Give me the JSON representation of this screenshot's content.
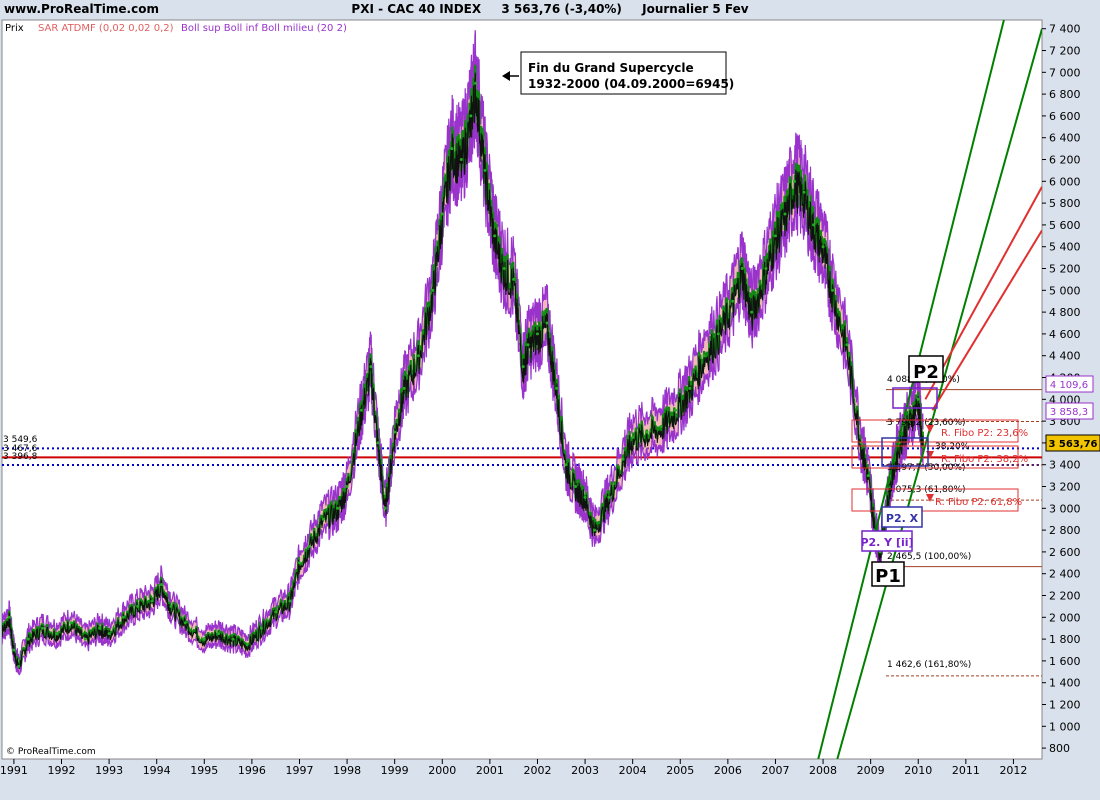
{
  "header": {
    "site": "www.ProRealTime.com",
    "instrument": "PXI - CAC 40 INDEX",
    "last": "3 563,76 (-3,40%)",
    "period": "Journalier  5 Fev"
  },
  "legend": {
    "prix": "Prix",
    "sar": "SAR ATDMF (0,02 0,02 0,2)",
    "boll": "Boll sup Boll inf Boll milieu (20 2)"
  },
  "copyright": "© ProRealTime.com",
  "annotation": {
    "line1": "Fin du Grand Supercycle",
    "line2": "1932-2000 (04.09.2000=6945)"
  },
  "price_tags": {
    "tag1": "4 109,6",
    "tag2": "3 858,3",
    "tag3": "3 563,76"
  },
  "left_levels": {
    "l1": "3 549,6",
    "l2": "3 467,6",
    "l3": "3 396,8"
  },
  "fib_labels": {
    "f0": "4 088,5 (0,00%)",
    "f23": "3 796,2 (23,60%)",
    "f38": "38,20%",
    "f50": "3 397,7 (50,00%)",
    "f61": "3 075,3 (61,80%)",
    "f100": "2 465,5 (100,00%)",
    "f161": "1 462,6 (161,80%)",
    "r1": "R. Fibo P2: 23,6%",
    "r2": "R. Fibo P2: 38,2%",
    "r3": "R. Fibo P2: 61,8%"
  },
  "waves": {
    "p1": "P1",
    "p2": "P2",
    "p2y": "P2. Y [ii]",
    "p2x": "P2. X"
  },
  "chart_data": {
    "type": "line",
    "title": "PXI - CAC 40 INDEX",
    "frequency": "daily",
    "series": [
      {
        "name": "Prix",
        "x": [
          1990.7,
          1990.9,
          1991.0,
          1991.1,
          1991.3,
          1991.6,
          1991.9,
          1992.2,
          1992.5,
          1992.8,
          1993.0,
          1993.3,
          1993.6,
          1993.9,
          1994.1,
          1994.3,
          1994.6,
          1995.0,
          1995.3,
          1995.6,
          1995.9,
          1996.2,
          1996.5,
          1996.8,
          1997.0,
          1997.2,
          1997.5,
          1997.8,
          1998.0,
          1998.3,
          1998.5,
          1998.65,
          1998.8,
          1999.0,
          1999.2,
          1999.5,
          1999.8,
          2000.0,
          2000.2,
          2000.4,
          2000.6,
          2000.7,
          2000.9,
          2001.1,
          2001.3,
          2001.5,
          2001.7,
          2001.8,
          2002.0,
          2002.2,
          2002.4,
          2002.6,
          2002.8,
          2003.0,
          2003.2,
          2003.5,
          2003.8,
          2004.0,
          2004.3,
          2004.6,
          2004.9,
          2005.2,
          2005.5,
          2005.8,
          2006.1,
          2006.3,
          2006.5,
          2006.8,
          2007.0,
          2007.2,
          2007.4,
          2007.6,
          2007.8,
          2008.0,
          2008.2,
          2008.5,
          2008.8,
          2008.95,
          2009.1,
          2009.2,
          2009.4,
          2009.6,
          2009.8,
          2010.0,
          2010.1
        ],
        "y": [
          1850,
          2000,
          1700,
          1550,
          1800,
          1900,
          1850,
          1950,
          1800,
          1900,
          1850,
          2000,
          2100,
          2150,
          2300,
          2100,
          1950,
          1800,
          1850,
          1800,
          1750,
          1900,
          2050,
          2150,
          2500,
          2650,
          2900,
          3000,
          3200,
          3900,
          4300,
          3600,
          3000,
          3700,
          4100,
          4400,
          5000,
          5700,
          6300,
          6200,
          6600,
          6900,
          6100,
          5500,
          5200,
          5100,
          4300,
          4500,
          4600,
          4700,
          4100,
          3400,
          3200,
          3100,
          2800,
          3100,
          3450,
          3650,
          3700,
          3750,
          3900,
          4100,
          4400,
          4600,
          4900,
          5200,
          4800,
          5200,
          5500,
          5700,
          6000,
          5900,
          5600,
          5400,
          5000,
          4500,
          3600,
          3300,
          2800,
          2600,
          3200,
          3600,
          3800,
          4000,
          3563.76
        ]
      }
    ],
    "xlabel": "",
    "ylabel": "",
    "xlim": [
      1990.75,
      2012.6
    ],
    "ylim": [
      700,
      7480
    ],
    "x_ticks": [
      "1991",
      "1992",
      "1993",
      "1994",
      "1995",
      "1996",
      "1997",
      "1998",
      "1999",
      "2000",
      "2001",
      "2002",
      "2003",
      "2004",
      "2005",
      "2006",
      "2007",
      "2008",
      "2009",
      "2010",
      "2011",
      "2012"
    ],
    "y_ticks": [
      800,
      1000,
      1200,
      1400,
      1600,
      1800,
      2000,
      2200,
      2400,
      2600,
      2800,
      3000,
      3200,
      3400,
      3600,
      3800,
      4000,
      4200,
      4400,
      4600,
      4800,
      5000,
      5200,
      5400,
      5600,
      5800,
      6000,
      6200,
      6400,
      6600,
      6800,
      7000,
      7200,
      7400
    ],
    "last_value": 3563.76,
    "change_pct": -3.4,
    "fibonacci_levels": [
      {
        "pct": 0,
        "value": 4088.5
      },
      {
        "pct": 23.6,
        "value": 3796.2
      },
      {
        "pct": 50.0,
        "value": 3397.7
      },
      {
        "pct": 61.8,
        "value": 3075.3
      },
      {
        "pct": 100.0,
        "value": 2465.5
      },
      {
        "pct": 161.8,
        "value": 1462.6
      }
    ],
    "horizontal_levels": [
      {
        "value": 3549.6,
        "color": "#0000cc",
        "style": "dotted"
      },
      {
        "value": 3467.6,
        "color": "#cc0000",
        "style": "solid"
      },
      {
        "value": 3396.8,
        "color": "#0000cc",
        "style": "dotted"
      }
    ],
    "channel_lines": [
      {
        "color": "#008000",
        "x": [
          2007.9,
          2011.8
        ],
        "y": [
          700,
          7480
        ]
      },
      {
        "color": "#008000",
        "x": [
          2008.3,
          2012.6
        ],
        "y": [
          700,
          7400
        ]
      },
      {
        "color": "#e03030",
        "x": [
          2010.15,
          2012.6
        ],
        "y": [
          4000,
          5950
        ]
      },
      {
        "color": "#e03030",
        "x": [
          2010.3,
          2012.6
        ],
        "y": [
          3900,
          5550
        ]
      }
    ],
    "annotation_point": {
      "x": 2000.7,
      "y": 6945
    },
    "grid": false,
    "colors": {
      "background": "#ffffff",
      "price_up": "#22aa22",
      "price_down": "#111111",
      "sar": "#e06060",
      "bollinger": "#9933cc"
    }
  }
}
